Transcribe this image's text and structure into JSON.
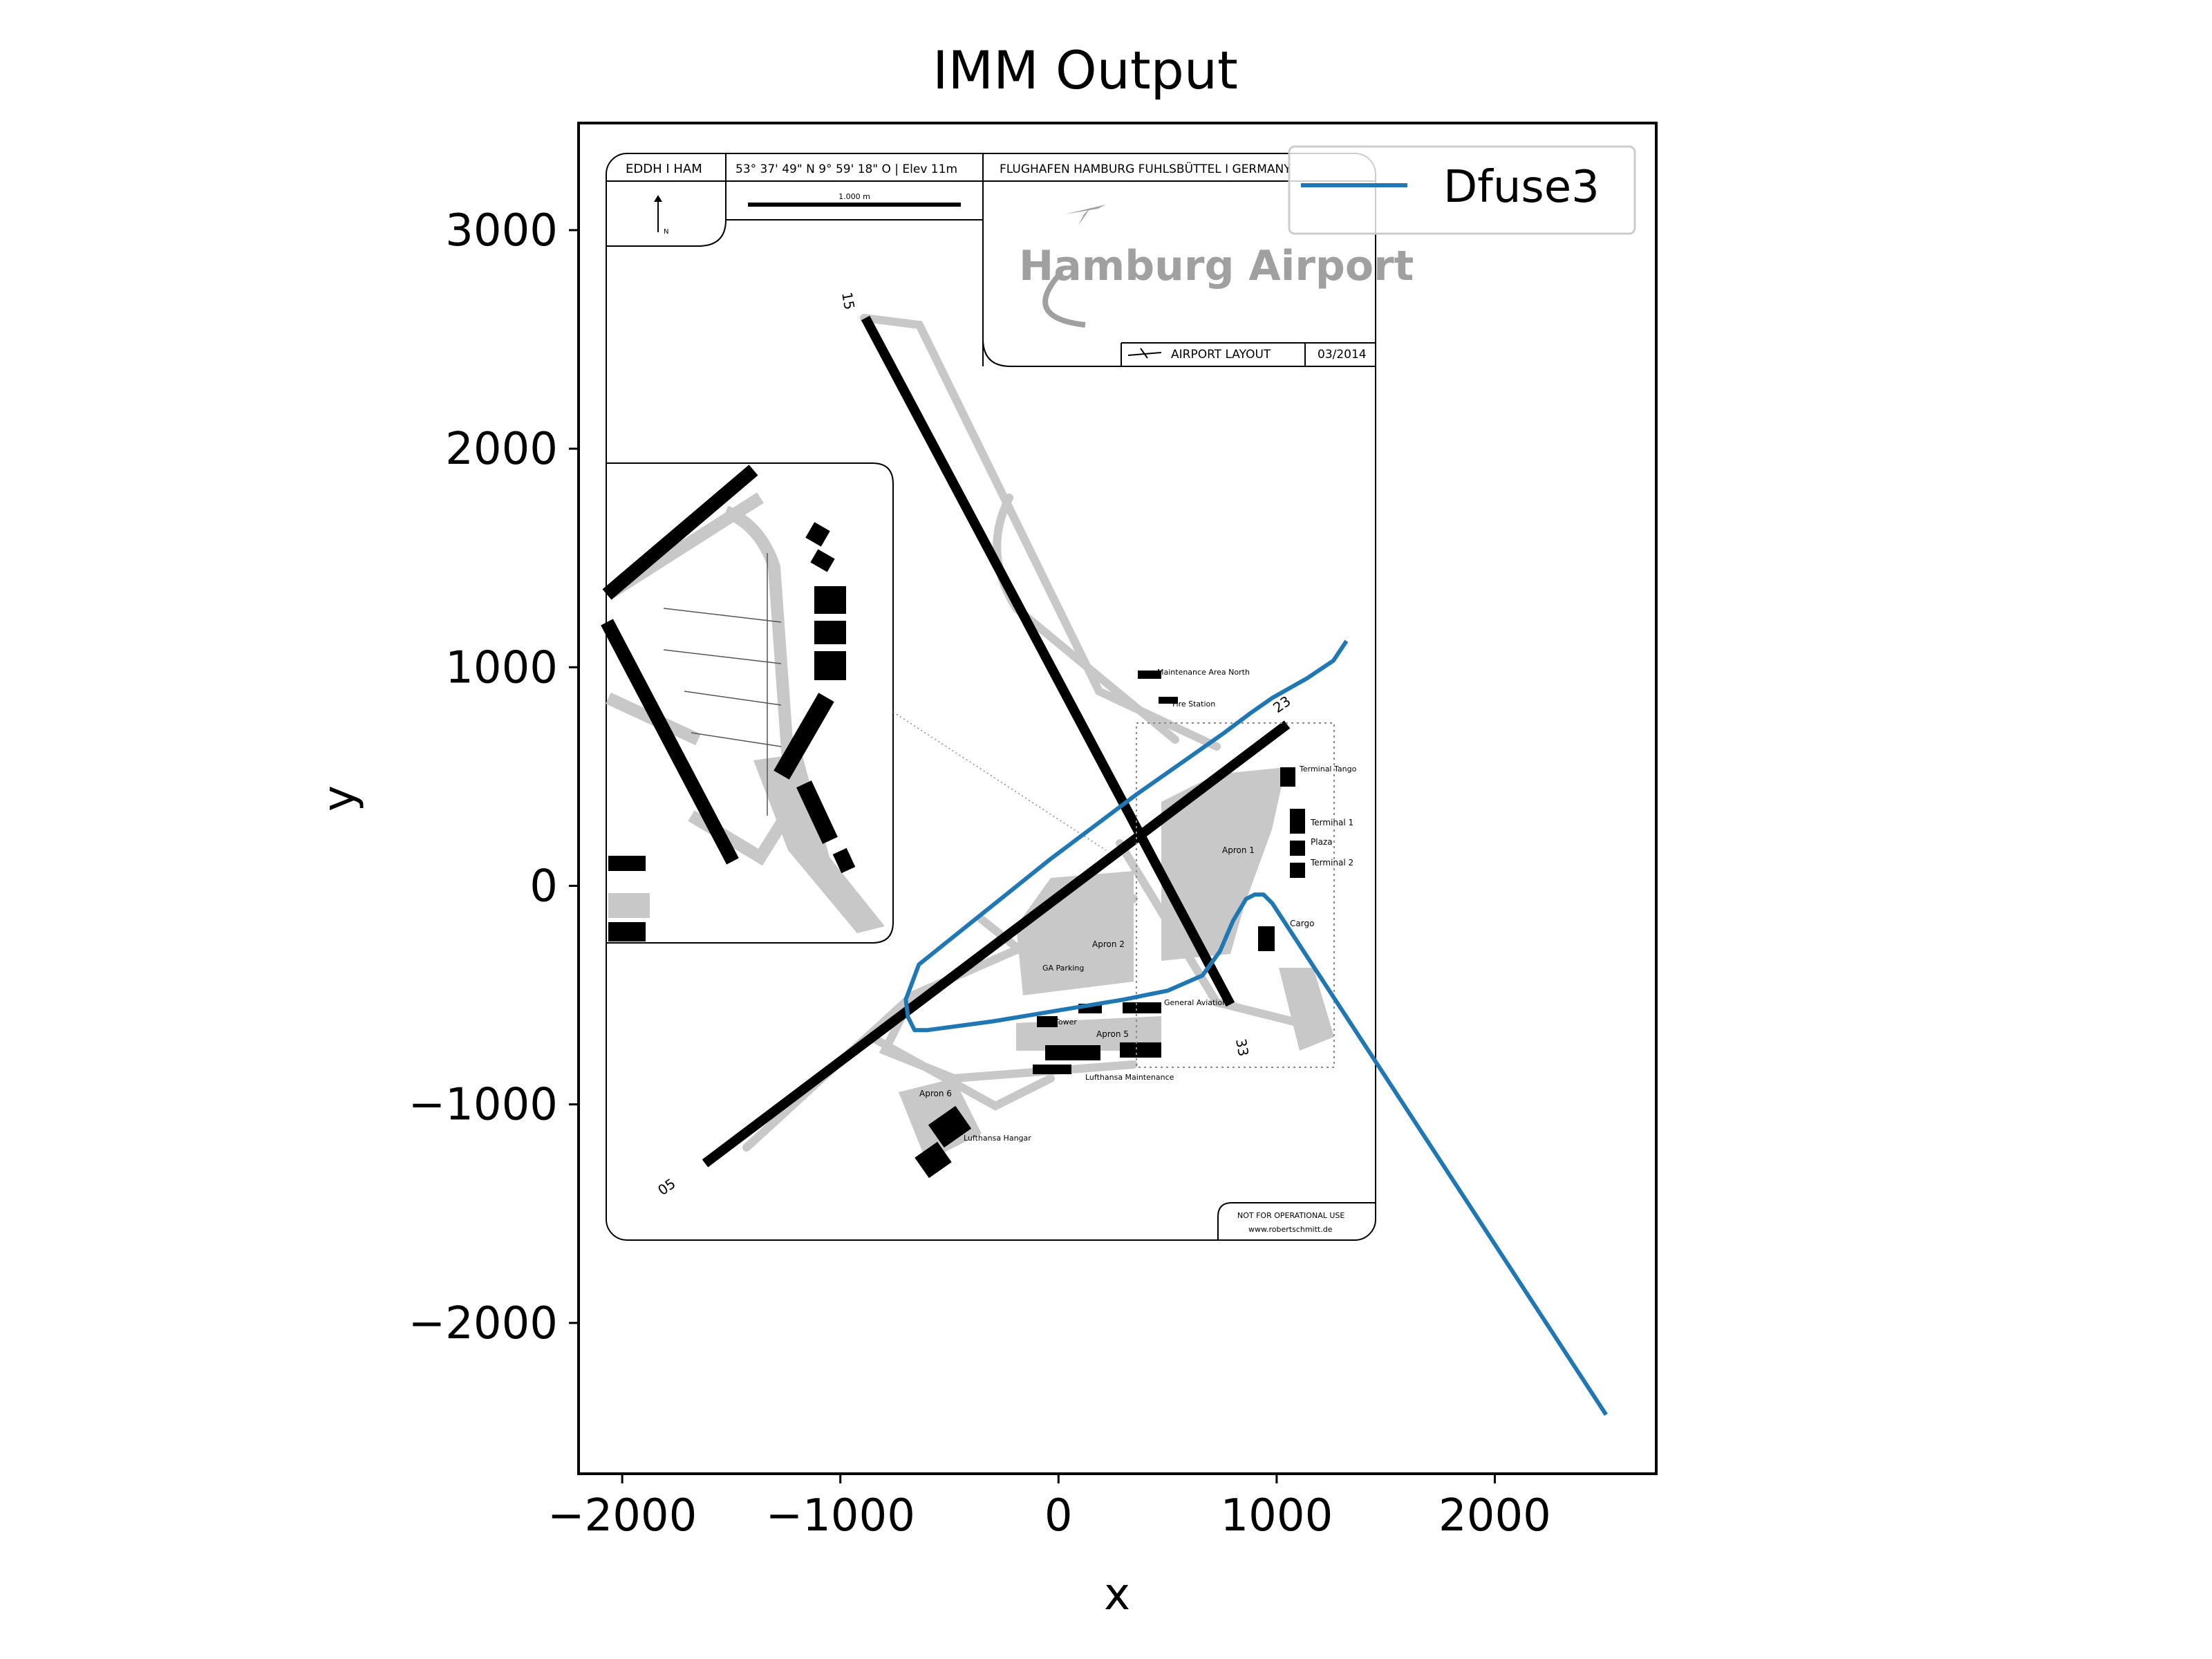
{
  "chart_data": {
    "type": "line",
    "title": "IMM Output",
    "xlabel": "x",
    "ylabel": "y",
    "xlim": [
      -2200,
      2740
    ],
    "ylim": [
      -2690,
      3490
    ],
    "xticks": [
      -2000,
      -1000,
      0,
      1000,
      2000
    ],
    "yticks": [
      -2000,
      -1000,
      0,
      1000,
      2000,
      3000
    ],
    "xtick_labels": [
      "−2000",
      "−1000",
      "0",
      "1000",
      "2000"
    ],
    "ytick_labels": [
      "−2000",
      "−1000",
      "0",
      "1000",
      "2000",
      "3000"
    ],
    "grid": false,
    "legend": {
      "position": "top-right"
    },
    "series": [
      {
        "name": "Dfuse3",
        "color": "#1f77b4",
        "x": [
          1320,
          1280,
          1260,
          1140,
          980,
          880,
          760,
          560,
          360,
          160,
          -40,
          -240,
          -440,
          -640,
          -700,
          -690,
          -660,
          -600,
          -300,
          0,
          300,
          500,
          660,
          740,
          800,
          860,
          900,
          940,
          980,
          2510
        ],
        "y": [
          1120,
          1060,
          1030,
          950,
          860,
          790,
          700,
          560,
          420,
          270,
          120,
          -40,
          -200,
          -360,
          -520,
          -600,
          -660,
          -660,
          -620,
          -570,
          -520,
          -480,
          -410,
          -300,
          -160,
          -60,
          -40,
          -40,
          -80,
          -2420
        ]
      }
    ]
  },
  "background_image": {
    "description_text": {
      "header_code": "EDDH  I  HAM",
      "header_coords": "53° 37' 49\" N   9° 59' 18\" O  |  Elev 11m",
      "header_name": "FLUGHAFEN HAMBURG FUHLSBÜTTEL  I  GERMANY",
      "scale": "1.000 m",
      "north": "N",
      "logo": "Hamburg Airport",
      "layout_label": "AIRPORT LAYOUT",
      "layout_date": "03/2014",
      "disclaimer": "NOT FOR OPERATIONAL USE",
      "website": "www.robertschmitt.de",
      "rw15": "15",
      "rw33": "33",
      "rw05": "05",
      "rw23": "23",
      "apron1": "Apron 1",
      "apron2": "Apron 2",
      "apron5": "Apron 5",
      "apron6": "Apron 6",
      "terminal1": "Terminal 1",
      "terminal2": "Terminal 2",
      "plaza": "Plaza",
      "cargo": "Cargo",
      "tango": "Terminal Tango",
      "maint_north": "Maintenance Area North",
      "fire": "Fire Station",
      "lh_maint": "Lufthansa Maintenance",
      "lh_hangar": "Lufthansa Hangar",
      "tower": "Tower",
      "ga": "GA Parking",
      "general_aviation": "General Aviation"
    }
  }
}
